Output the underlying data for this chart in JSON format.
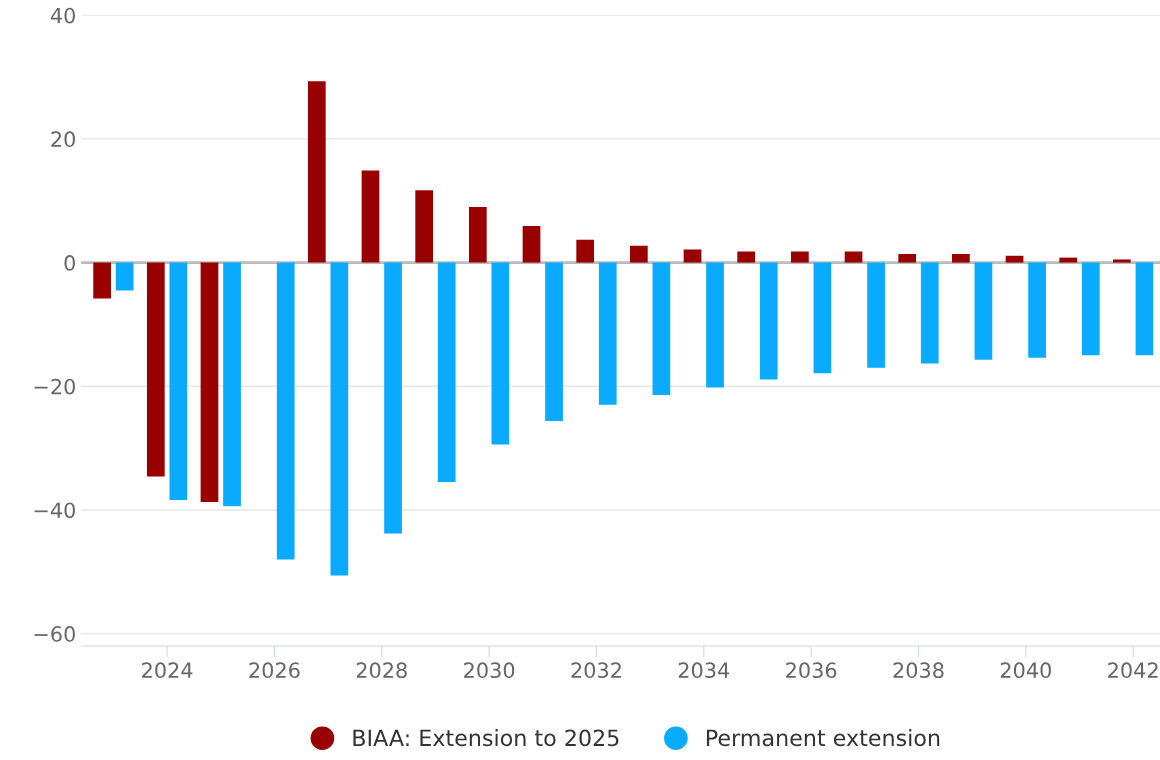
{
  "chart_data": {
    "type": "bar",
    "x": [
      2023,
      2024,
      2025,
      2026,
      2027,
      2028,
      2029,
      2030,
      2031,
      2032,
      2033,
      2034,
      2035,
      2036,
      2037,
      2038,
      2039,
      2040,
      2041,
      2042
    ],
    "series": [
      {
        "name": "BIAA: Extension to 2025",
        "color": "#990000",
        "values": [
          -5.8,
          -34.6,
          -38.7,
          0,
          29.3,
          14.9,
          11.7,
          9.0,
          5.9,
          3.7,
          2.7,
          2.1,
          1.8,
          1.8,
          1.8,
          1.4,
          1.4,
          1.1,
          0.8,
          0.5
        ]
      },
      {
        "name": "Permanent extension",
        "color": "#0aaaff",
        "values": [
          -4.5,
          -38.4,
          -39.4,
          -48,
          -50.6,
          -43.8,
          -35.5,
          -29.4,
          -25.6,
          -23,
          -21.4,
          -20.2,
          -18.9,
          -17.9,
          -17,
          -16.3,
          -15.7,
          -15.4,
          -15,
          -15
        ]
      }
    ],
    "xlim": [
      2022.4,
      2042.5
    ],
    "xticks": [
      2024,
      2026,
      2028,
      2030,
      2032,
      2034,
      2036,
      2038,
      2040,
      2042
    ],
    "ylim": [
      -62,
      40
    ],
    "yticks": [
      -60,
      -40,
      -20,
      0,
      20,
      40
    ],
    "ref_lines": [
      {
        "axis": "y",
        "value": 0,
        "color": "#bbbbbb"
      }
    ],
    "grid": "y",
    "legend": "bottom"
  }
}
